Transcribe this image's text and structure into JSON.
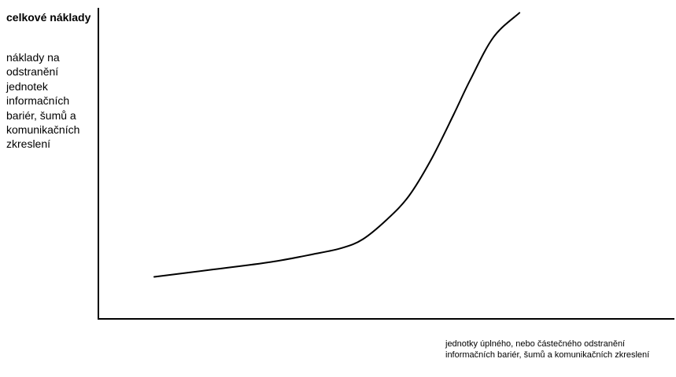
{
  "chart_data": {
    "type": "line",
    "title": "",
    "ylabel_title": "celkové náklady",
    "ylabel": "náklady na odstranění jednotek informačních bariér, šumů a komunikačních zkreslení",
    "xlabel": "jednotky úplného, nebo částečného odstranění informačních bariér, šumů a komunikačních zkreslení",
    "ticks": false,
    "grid": false,
    "legend": "none",
    "xlim": [
      0,
      100
    ],
    "ylim": [
      0,
      100
    ],
    "series": [
      {
        "x": [
          9.7,
          20,
          30,
          37.3,
          42.3,
          45.9,
          50,
          53.9,
          57.7,
          61.6,
          64.6,
          68.6,
          73.1
        ],
        "y": [
          13.5,
          15.9,
          18.3,
          20.8,
          22.8,
          25.6,
          31.8,
          39.5,
          51.0,
          65.4,
          77.0,
          90.6,
          98.4
        ]
      }
    ],
    "colors": {
      "axis": "#000000",
      "line": "#000000",
      "background": "#ffffff"
    }
  }
}
